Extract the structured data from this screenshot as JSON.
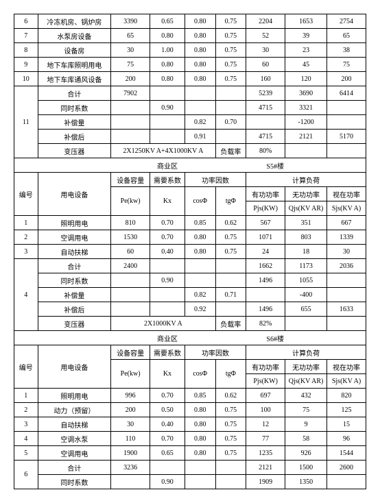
{
  "top_rows": [
    {
      "no": "6",
      "name": "冷冻机房、锅炉房",
      "pe": "3390",
      "kx": "0.65",
      "cos": "0.80",
      "tg": "0.75",
      "p": "2204",
      "q": "1653",
      "s": "2754"
    },
    {
      "no": "7",
      "name": "水泵房设备",
      "pe": "65",
      "kx": "0.80",
      "cos": "0.80",
      "tg": "0.75",
      "p": "52",
      "q": "39",
      "s": "65"
    },
    {
      "no": "8",
      "name": "设备房",
      "pe": "30",
      "kx": "1.00",
      "cos": "0.80",
      "tg": "0.75",
      "p": "30",
      "q": "23",
      "s": "38"
    },
    {
      "no": "9",
      "name": "地下车库照明用电",
      "pe": "75",
      "kx": "0.80",
      "cos": "0.80",
      "tg": "0.75",
      "p": "60",
      "q": "45",
      "s": "75"
    },
    {
      "no": "10",
      "name": "地下车库通风设备",
      "pe": "200",
      "kx": "0.80",
      "cos": "0.80",
      "tg": "0.75",
      "p": "160",
      "q": "120",
      "s": "200"
    }
  ],
  "block11": {
    "no": "11",
    "heji": "合计",
    "heji_pe": "7902",
    "heji_p": "5239",
    "heji_q": "3690",
    "heji_s": "6414",
    "tongshi": "同时系数",
    "tongshi_kx": "0.90",
    "tongshi_p": "4715",
    "tongshi_q": "3321",
    "buchang": "补偿量",
    "buchang_cos": "0.82",
    "buchang_tg": "0.70",
    "buchang_q": "-1200",
    "buchanghou": "补偿后",
    "buchanghou_cos": "0.91",
    "buchanghou_p": "4715",
    "buchanghou_q": "2121",
    "buchanghou_s": "5170",
    "bianya": "变压器",
    "bianya_val": "2X1250KV A+4X1000KV A",
    "fuzailv": "负载率",
    "fuzailv_val": "80%"
  },
  "sec_s5": {
    "title_l": "商业区",
    "title_r": "S5#楼",
    "h_no": "编号",
    "h_name": "用电设备",
    "h_pe_top": "设备容量",
    "h_kx_top": "需要系数",
    "h_pf_top": "功率因数",
    "h_calc_top": "计算负荷",
    "h_pe": "Pe(kw)",
    "h_kx": "Kx",
    "h_cos": "cosΦ",
    "h_tg": "tgΦ",
    "h_p": "有功功率",
    "h_p2": "Pjs(KW)",
    "h_q": "无功功率",
    "h_q2": "Qjs(KV AR)",
    "h_s": "视在功率",
    "h_s2": "Sjs(KV A)"
  },
  "s5_rows": [
    {
      "no": "1",
      "name": "照明用电",
      "pe": "810",
      "kx": "0.70",
      "cos": "0.85",
      "tg": "0.62",
      "p": "567",
      "q": "351",
      "s": "667"
    },
    {
      "no": "2",
      "name": "空调用电",
      "pe": "1530",
      "kx": "0.70",
      "cos": "0.80",
      "tg": "0.75",
      "p": "1071",
      "q": "803",
      "s": "1339"
    },
    {
      "no": "3",
      "name": "自动扶梯",
      "pe": "60",
      "kx": "0.40",
      "cos": "0.80",
      "tg": "0.75",
      "p": "24",
      "q": "18",
      "s": "30"
    }
  ],
  "block4": {
    "no": "4",
    "heji": "合计",
    "heji_pe": "2400",
    "heji_p": "1662",
    "heji_q": "1173",
    "heji_s": "2036",
    "tongshi": "同时系数",
    "tongshi_kx": "0.90",
    "tongshi_p": "1496",
    "tongshi_q": "1055",
    "buchang": "补偿量",
    "buchang_cos": "0.82",
    "buchang_tg": "0.71",
    "buchang_q": "-400",
    "buchanghou": "补偿后",
    "buchanghou_cos": "0.92",
    "buchanghou_p": "1496",
    "buchanghou_q": "655",
    "buchanghou_s": "1633",
    "bianya": "变压器",
    "bianya_val": "2X1000KV A",
    "fuzailv": "负载率",
    "fuzailv_val": "82%"
  },
  "sec_s6": {
    "title_l": "商业区",
    "title_r": "S6#楼"
  },
  "s6_rows": [
    {
      "no": "1",
      "name": "照明用电",
      "pe": "996",
      "kx": "0.70",
      "cos": "0.85",
      "tg": "0.62",
      "p": "697",
      "q": "432",
      "s": "820"
    },
    {
      "no": "2",
      "name": "动力（预留）",
      "pe": "200",
      "kx": "0.50",
      "cos": "0.80",
      "tg": "0.75",
      "p": "100",
      "q": "75",
      "s": "125"
    },
    {
      "no": "3",
      "name": "自动扶梯",
      "pe": "30",
      "kx": "0.40",
      "cos": "0.80",
      "tg": "0.75",
      "p": "12",
      "q": "9",
      "s": "15"
    },
    {
      "no": "4",
      "name": "空调水泵",
      "pe": "110",
      "kx": "0.70",
      "cos": "0.80",
      "tg": "0.75",
      "p": "77",
      "q": "58",
      "s": "96"
    },
    {
      "no": "5",
      "name": "空调用电",
      "pe": "1900",
      "kx": "0.65",
      "cos": "0.80",
      "tg": "0.75",
      "p": "1235",
      "q": "926",
      "s": "1544"
    }
  ],
  "block6": {
    "no": "6",
    "heji": "合计",
    "heji_pe": "3236",
    "heji_p": "2121",
    "heji_q": "1500",
    "heji_s": "2600",
    "tongshi": "同时系数",
    "tongshi_kx": "0.90",
    "tongshi_p": "1909",
    "tongshi_q": "1350"
  }
}
